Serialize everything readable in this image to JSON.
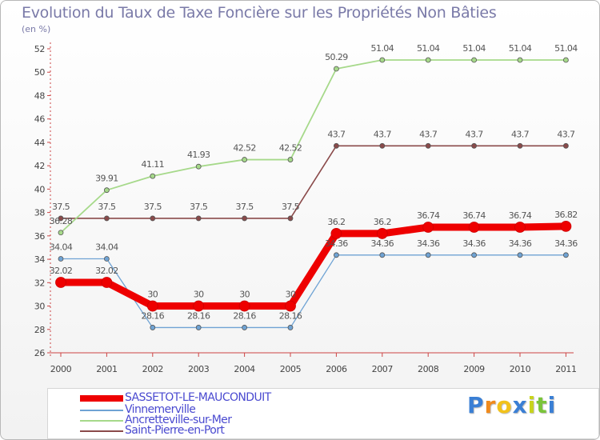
{
  "chart_data": {
    "type": "line",
    "title": "Evolution du Taux de Taxe Foncière sur les Propriétés Non Bâties",
    "subtitle": "(en %)",
    "xlabel": "",
    "ylabel": "",
    "categories": [
      "2000",
      "2001",
      "2002",
      "2003",
      "2004",
      "2005",
      "2006",
      "2007",
      "2008",
      "2009",
      "2010",
      "2011"
    ],
    "ylim": [
      26,
      52
    ],
    "yticks": [
      "26",
      "28",
      "30",
      "32",
      "34",
      "36",
      "38",
      "40",
      "42",
      "44",
      "46",
      "48",
      "50",
      "52"
    ],
    "grid": false,
    "legend_position": "bottom",
    "series": [
      {
        "name": "SASSETOT-LE-MAUCONDUIT",
        "color": "#ee0000",
        "values": [
          32.02,
          32.02,
          30,
          30,
          30,
          30,
          36.2,
          36.2,
          36.74,
          36.74,
          36.74,
          36.82
        ],
        "labels": [
          "32.02",
          "32.02",
          "30",
          "30",
          "30",
          "30",
          "36.2",
          "36.2",
          "36.74",
          "36.74",
          "36.74",
          "36.82"
        ]
      },
      {
        "name": "Vinnemerville",
        "color": "#6fa3d4",
        "values": [
          34.04,
          34.04,
          28.16,
          28.16,
          28.16,
          28.16,
          34.36,
          34.36,
          34.36,
          34.36,
          34.36,
          34.36
        ],
        "labels": [
          "34.04",
          "34.04",
          "28.16",
          "28.16",
          "28.16",
          "28.16",
          "34.36",
          "34.36",
          "34.36",
          "34.36",
          "34.36",
          "34.36"
        ]
      },
      {
        "name": "Ancretteville-sur-Mer",
        "color": "#a6d98a",
        "values": [
          36.28,
          39.91,
          41.11,
          41.93,
          42.52,
          42.52,
          50.29,
          51.04,
          51.04,
          51.04,
          51.04,
          51.04
        ],
        "labels": [
          "36.28",
          "39.91",
          "41.11",
          "41.93",
          "42.52",
          "42.52",
          "50.29",
          "51.04",
          "51.04",
          "51.04",
          "51.04",
          "51.04"
        ]
      },
      {
        "name": "Saint-Pierre-en-Port",
        "color": "#8a4a4a",
        "values": [
          37.5,
          37.5,
          37.5,
          37.5,
          37.5,
          37.5,
          43.7,
          43.7,
          43.7,
          43.7,
          43.7,
          43.7
        ],
        "labels": [
          "37.5",
          "37.5",
          "37.5",
          "37.5",
          "37.5",
          "37.5",
          "43.7",
          "43.7",
          "43.7",
          "43.7",
          "43.7",
          "43.7"
        ]
      }
    ]
  },
  "brand": {
    "letters": [
      "P",
      "r",
      "o",
      "x",
      "i",
      "t",
      "i"
    ],
    "colors": [
      "#3a7fd5",
      "#f08a1c",
      "#f2c21a",
      "#3a7fd5",
      "#c8d41c",
      "#7ac43a",
      "#3a7fd5"
    ]
  }
}
